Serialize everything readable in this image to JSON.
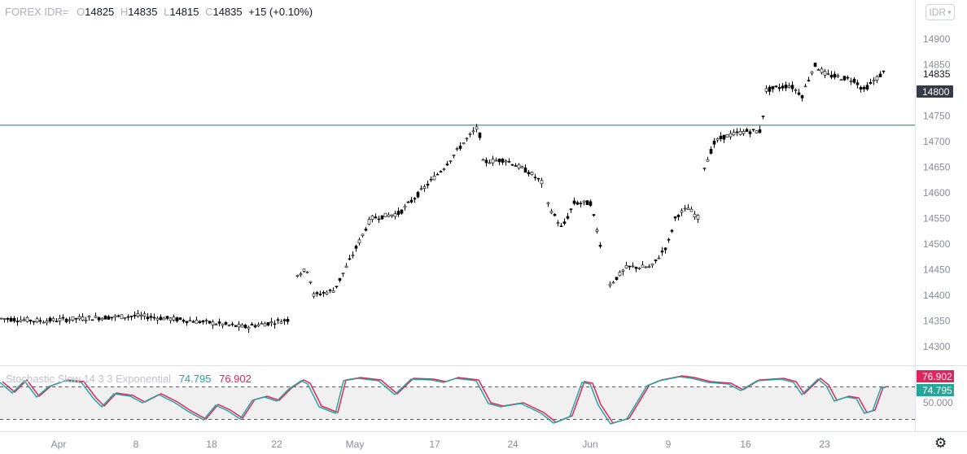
{
  "header": {
    "symbol": "FOREX IDR=",
    "open_key": "O",
    "open": "14825",
    "high_key": "H",
    "high": "14835",
    "low_key": "L",
    "low": "14815",
    "close_key": "C",
    "close": "14835",
    "change": "+15 (+0.10%)"
  },
  "currency_button": "IDR",
  "price_axis": {
    "ticks": [
      "14900",
      "14850",
      "14800",
      "14750",
      "14700",
      "14650",
      "14600",
      "14550",
      "14500",
      "14450",
      "14400",
      "14350",
      "14300"
    ],
    "last_price_label": "14835",
    "marker_label": "14800",
    "horizontal_line_value": 14732
  },
  "time_axis": {
    "labels": [
      "Apr",
      "8",
      "18",
      "22",
      "May",
      "17",
      "24",
      "Jun",
      "9",
      "16",
      "23"
    ]
  },
  "stochastic": {
    "name": "Stochastic Slow 14 3 3 Exponential",
    "k_value": "74.795",
    "d_value": "76.902",
    "mid_label": "50.000",
    "badge_d": "76.902",
    "badge_k": "74.795"
  },
  "colors": {
    "candle": "#000000",
    "hline": "#1f6f8b",
    "stoch_k": "#26a69a",
    "stoch_d": "#e0245e",
    "badge_dark": "#363a45"
  },
  "icons": {
    "settings": "gear-icon",
    "dropdown": "chevron-down-icon"
  },
  "chart_data": {
    "type": "line",
    "title": "FOREX IDR=",
    "ylim": [
      14280,
      14920
    ],
    "x_labels": [
      "Apr",
      "8",
      "18",
      "22",
      "May",
      "17",
      "24",
      "Jun",
      "9",
      "16",
      "23"
    ],
    "series": [
      {
        "name": "IDR=",
        "x": [
          "Apr",
          "8",
          "18",
          "22",
          "May",
          "17",
          "24",
          "Jun",
          "9",
          "16",
          "23"
        ],
        "values": [
          14350,
          14355,
          14345,
          14350,
          14410,
          14710,
          14640,
          14430,
          14560,
          14780,
          14835
        ]
      }
    ],
    "indicator": {
      "name": "Stochastic Slow 14 3 3 Exponential",
      "k_last": 74.795,
      "d_last": 76.902,
      "levels": [
        80,
        20
      ],
      "mid": 50
    }
  }
}
